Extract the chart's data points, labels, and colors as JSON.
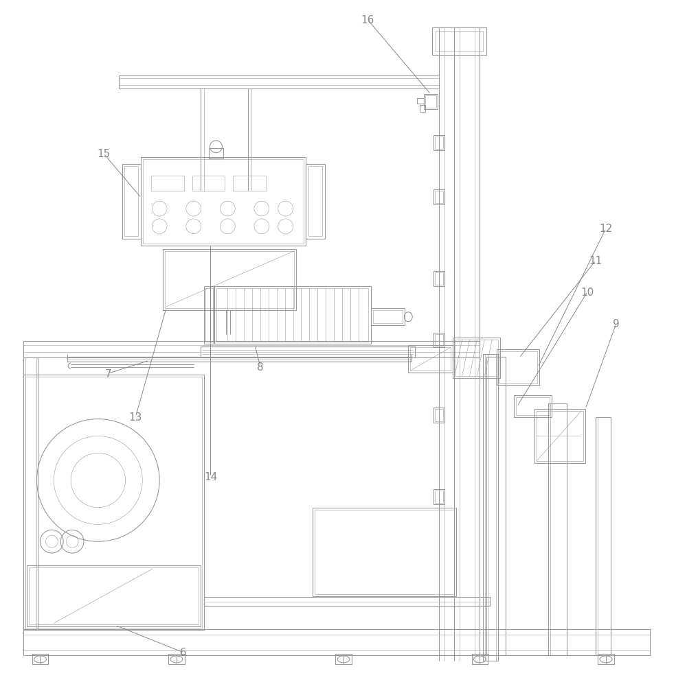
{
  "bg_color": "#ffffff",
  "lc": "#999999",
  "lc2": "#777777",
  "lw": 0.8,
  "lwt": 0.4,
  "label_color": "#888888",
  "label_fs": 11,
  "figsize": [
    10.0,
    9.95
  ],
  "dpi": 100
}
